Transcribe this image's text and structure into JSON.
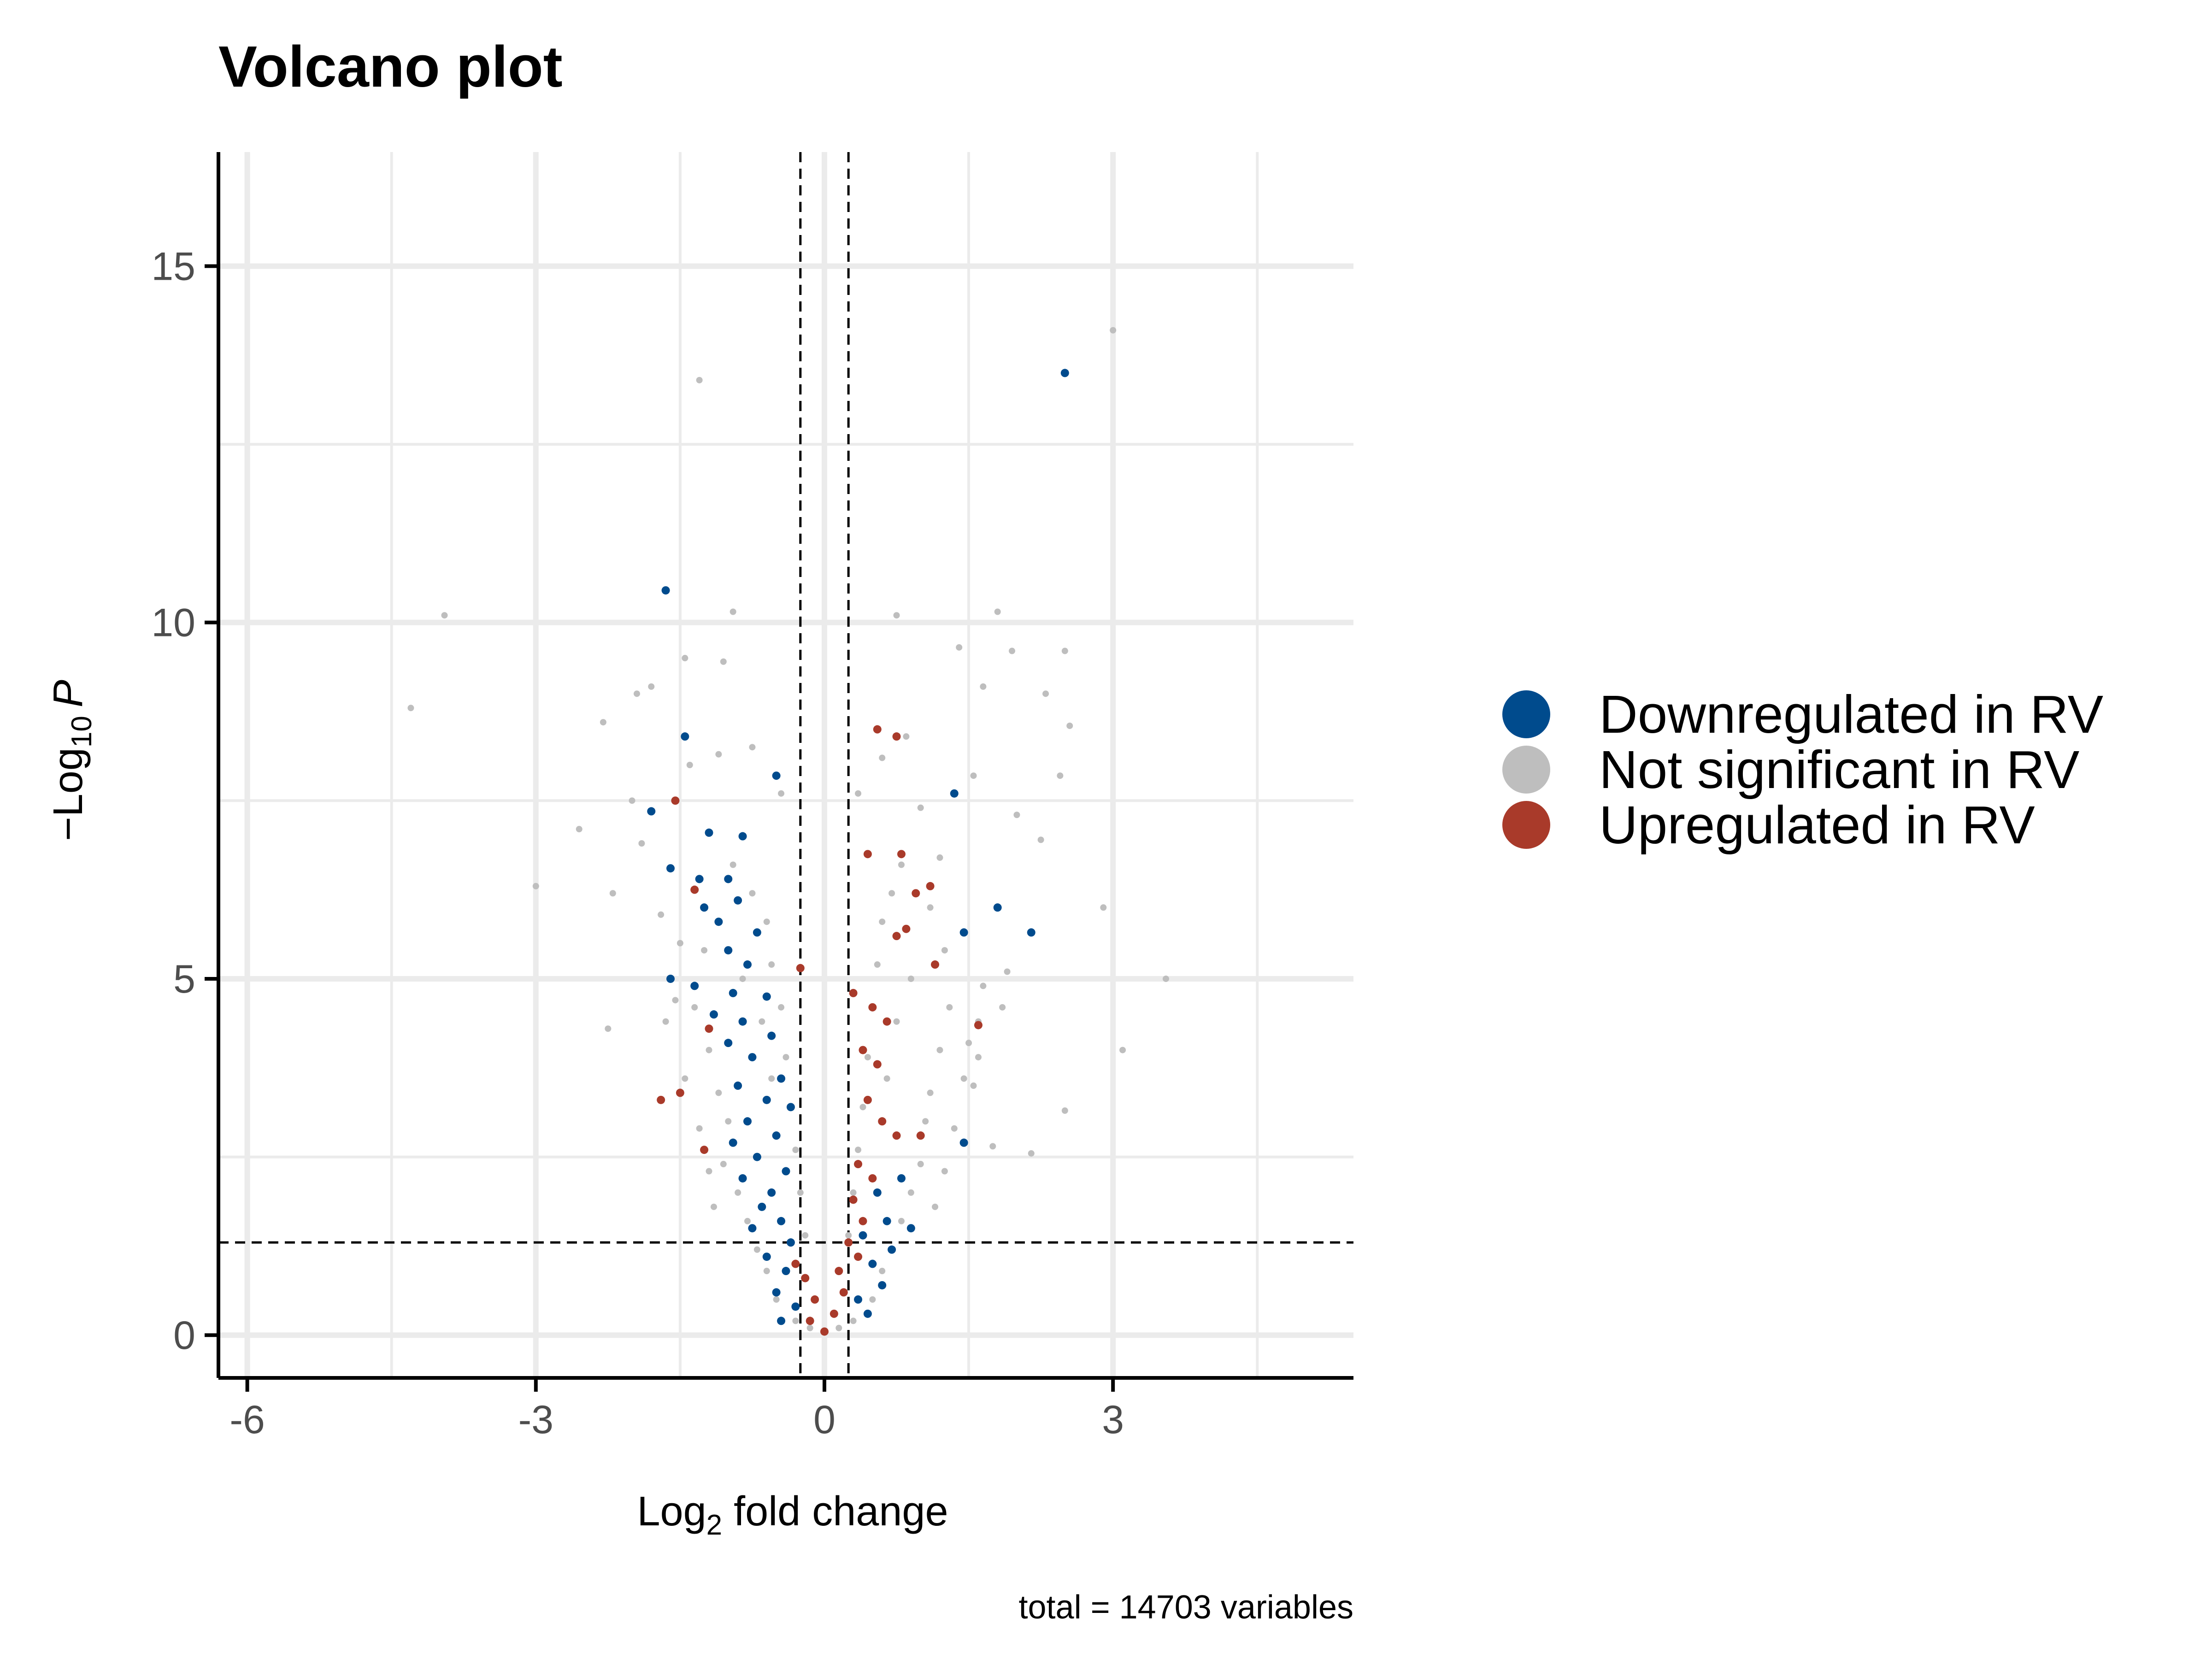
{
  "chart_data": {
    "type": "scatter",
    "title": "Volcano plot",
    "xlabel": {
      "main": "Log",
      "sub": "2",
      "rest": " fold change"
    },
    "ylabel": {
      "pre": "−Log",
      "sub": "10",
      "italic": "P"
    },
    "caption": "total = 14703 variables",
    "xlim": [
      -6.3,
      5.5
    ],
    "ylim": [
      -0.6,
      16.6
    ],
    "x_ticks": [
      -6,
      -3,
      0,
      3
    ],
    "x_tick_labels": [
      "-6",
      "-3",
      "0",
      "3"
    ],
    "y_ticks": [
      0,
      5,
      10,
      15
    ],
    "y_tick_labels": [
      "0",
      "5",
      "10",
      "15"
    ],
    "x_minor_gridlines": [
      -4.5,
      -1.5,
      1.5,
      4.5
    ],
    "y_minor_gridlines": [
      2.5,
      7.5,
      12.5
    ],
    "grid": true,
    "cutoffs": {
      "fold_change": [
        -0.25,
        0.25
      ],
      "neg_log10_p": 1.3
    },
    "legend_placement": "right",
    "series": [
      {
        "name": "Downregulated in RV",
        "color": "#004B8D",
        "points": [
          [
            2.5,
            13.5
          ],
          [
            -1.65,
            10.45
          ],
          [
            -1.45,
            8.4
          ],
          [
            -0.5,
            7.85
          ],
          [
            -1.8,
            7.35
          ],
          [
            -1.2,
            7.05
          ],
          [
            -0.85,
            7.0
          ],
          [
            -1.6,
            6.55
          ],
          [
            -1.3,
            6.4
          ],
          [
            -1.0,
            6.4
          ],
          [
            1.35,
            7.6
          ],
          [
            1.8,
            6.0
          ],
          [
            2.15,
            5.65
          ],
          [
            1.45,
            5.65
          ],
          [
            -1.25,
            6.0
          ],
          [
            -0.9,
            6.1
          ],
          [
            -1.1,
            5.8
          ],
          [
            -0.7,
            5.65
          ],
          [
            -1.0,
            5.4
          ],
          [
            -0.8,
            5.2
          ],
          [
            -1.6,
            5.0
          ],
          [
            -1.35,
            4.9
          ],
          [
            -0.95,
            4.8
          ],
          [
            -0.6,
            4.75
          ],
          [
            -1.15,
            4.5
          ],
          [
            -0.85,
            4.4
          ],
          [
            -0.55,
            4.2
          ],
          [
            -1.0,
            4.1
          ],
          [
            -0.75,
            3.9
          ],
          [
            -0.45,
            3.6
          ],
          [
            -0.9,
            3.5
          ],
          [
            -0.6,
            3.3
          ],
          [
            -0.35,
            3.2
          ],
          [
            -0.8,
            3.0
          ],
          [
            -0.5,
            2.8
          ],
          [
            -0.95,
            2.7
          ],
          [
            -0.7,
            2.5
          ],
          [
            -0.4,
            2.3
          ],
          [
            -0.85,
            2.2
          ],
          [
            -0.55,
            2.0
          ],
          [
            -0.65,
            1.8
          ],
          [
            -0.45,
            1.6
          ],
          [
            -0.75,
            1.5
          ],
          [
            -0.35,
            1.3
          ],
          [
            -0.6,
            1.1
          ],
          [
            -0.4,
            0.9
          ],
          [
            -0.5,
            0.6
          ],
          [
            -0.3,
            0.4
          ],
          [
            -0.45,
            0.2
          ],
          [
            1.45,
            2.7
          ],
          [
            0.8,
            2.2
          ],
          [
            0.55,
            2.0
          ],
          [
            0.65,
            1.6
          ],
          [
            0.9,
            1.5
          ],
          [
            0.4,
            1.4
          ],
          [
            0.7,
            1.2
          ],
          [
            0.5,
            1.0
          ],
          [
            0.6,
            0.7
          ],
          [
            0.35,
            0.5
          ],
          [
            0.45,
            0.3
          ]
        ]
      },
      {
        "name": "Not significant in RV",
        "color": "#BEBEBE",
        "points": [
          [
            3.0,
            14.1
          ],
          [
            -1.3,
            13.4
          ],
          [
            -3.95,
            10.1
          ],
          [
            -0.95,
            10.15
          ],
          [
            0.75,
            10.1
          ],
          [
            1.8,
            10.15
          ],
          [
            1.4,
            9.65
          ],
          [
            1.95,
            9.6
          ],
          [
            2.5,
            9.6
          ],
          [
            -1.45,
            9.5
          ],
          [
            -1.05,
            9.45
          ],
          [
            -4.3,
            8.8
          ],
          [
            1.65,
            9.1
          ],
          [
            2.3,
            9.0
          ],
          [
            -1.8,
            9.1
          ],
          [
            -1.95,
            9.0
          ],
          [
            -2.3,
            8.6
          ],
          [
            2.55,
            8.55
          ],
          [
            -3.0,
            6.3
          ],
          [
            2.9,
            6.0
          ],
          [
            3.55,
            5.0
          ],
          [
            3.1,
            4.0
          ],
          [
            2.5,
            3.15
          ],
          [
            2.15,
            2.55
          ],
          [
            -2.25,
            4.3
          ],
          [
            -2.55,
            7.1
          ],
          [
            -2.0,
            7.5
          ],
          [
            -1.9,
            6.9
          ],
          [
            -2.2,
            6.2
          ],
          [
            -1.7,
            5.9
          ],
          [
            -1.55,
            4.7
          ],
          [
            1.9,
            5.1
          ],
          [
            1.65,
            4.9
          ],
          [
            1.85,
            4.6
          ],
          [
            1.5,
            4.1
          ],
          [
            1.6,
            3.9
          ],
          [
            1.55,
            3.5
          ],
          [
            1.75,
            2.65
          ],
          [
            2.0,
            7.3
          ],
          [
            2.25,
            6.95
          ],
          [
            2.45,
            7.85
          ],
          [
            1.55,
            7.85
          ],
          [
            -1.4,
            8.0
          ],
          [
            -1.1,
            8.15
          ],
          [
            -0.75,
            8.25
          ],
          [
            -0.45,
            7.6
          ],
          [
            0.35,
            7.6
          ],
          [
            0.6,
            8.1
          ],
          [
            0.85,
            8.4
          ],
          [
            1.0,
            7.4
          ],
          [
            1.2,
            6.7
          ],
          [
            1.1,
            6.0
          ],
          [
            -1.5,
            5.5
          ],
          [
            -1.25,
            5.4
          ],
          [
            -1.35,
            4.6
          ],
          [
            -1.2,
            4.0
          ],
          [
            -1.1,
            3.4
          ],
          [
            -1.0,
            3.0
          ],
          [
            -1.05,
            2.4
          ],
          [
            -0.9,
            2.0
          ],
          [
            -0.8,
            1.6
          ],
          [
            -0.7,
            1.2
          ],
          [
            -0.6,
            0.9
          ],
          [
            -0.5,
            0.5
          ],
          [
            -0.3,
            0.2
          ],
          [
            -0.15,
            0.1
          ],
          [
            0.0,
            0.05
          ],
          [
            0.15,
            0.1
          ],
          [
            0.3,
            0.2
          ],
          [
            0.5,
            0.5
          ],
          [
            0.6,
            0.9
          ],
          [
            0.7,
            1.2
          ],
          [
            0.8,
            1.6
          ],
          [
            0.9,
            2.0
          ],
          [
            1.0,
            2.4
          ],
          [
            1.05,
            3.0
          ],
          [
            1.1,
            3.4
          ],
          [
            1.2,
            4.0
          ],
          [
            1.3,
            4.6
          ],
          [
            1.25,
            5.4
          ],
          [
            -0.95,
            6.6
          ],
          [
            -0.75,
            6.2
          ],
          [
            -0.6,
            5.8
          ],
          [
            -0.55,
            5.2
          ],
          [
            -0.45,
            4.6
          ],
          [
            -0.4,
            3.9
          ],
          [
            -0.35,
            3.2
          ],
          [
            -0.3,
            2.6
          ],
          [
            -0.25,
            2.0
          ],
          [
            -0.2,
            1.4
          ],
          [
            0.25,
            1.4
          ],
          [
            0.3,
            2.0
          ],
          [
            0.35,
            2.6
          ],
          [
            0.4,
            3.2
          ],
          [
            0.45,
            3.9
          ],
          [
            0.5,
            4.6
          ],
          [
            0.55,
            5.2
          ],
          [
            0.6,
            5.8
          ],
          [
            0.7,
            6.2
          ],
          [
            0.8,
            6.6
          ],
          [
            -1.65,
            4.4
          ],
          [
            -1.45,
            3.6
          ],
          [
            -1.3,
            2.9
          ],
          [
            -1.2,
            2.3
          ],
          [
            -1.15,
            1.8
          ],
          [
            1.15,
            1.8
          ],
          [
            1.25,
            2.3
          ],
          [
            1.35,
            2.9
          ],
          [
            1.45,
            3.6
          ],
          [
            1.6,
            4.4
          ],
          [
            -0.85,
            5.0
          ],
          [
            -0.65,
            4.4
          ],
          [
            -0.55,
            3.6
          ],
          [
            0.65,
            3.6
          ],
          [
            0.75,
            4.4
          ],
          [
            0.9,
            5.0
          ]
        ]
      },
      {
        "name": "Upregulated in RV",
        "color": "#A93A2A",
        "points": [
          [
            -1.55,
            7.5
          ],
          [
            0.55,
            8.5
          ],
          [
            0.75,
            8.4
          ],
          [
            -1.35,
            6.25
          ],
          [
            0.45,
            6.75
          ],
          [
            0.8,
            6.75
          ],
          [
            1.1,
            6.3
          ],
          [
            0.95,
            6.2
          ],
          [
            0.85,
            5.7
          ],
          [
            0.75,
            5.6
          ],
          [
            1.15,
            5.2
          ],
          [
            -0.25,
            5.15
          ],
          [
            0.3,
            4.8
          ],
          [
            0.5,
            4.6
          ],
          [
            0.65,
            4.4
          ],
          [
            1.6,
            4.35
          ],
          [
            -1.2,
            4.3
          ],
          [
            0.4,
            4.0
          ],
          [
            0.55,
            3.8
          ],
          [
            -1.5,
            3.4
          ],
          [
            -1.7,
            3.3
          ],
          [
            0.45,
            3.3
          ],
          [
            0.6,
            3.0
          ],
          [
            0.75,
            2.8
          ],
          [
            1.0,
            2.8
          ],
          [
            -1.25,
            2.6
          ],
          [
            0.35,
            2.4
          ],
          [
            0.5,
            2.2
          ],
          [
            0.3,
            1.9
          ],
          [
            0.4,
            1.6
          ],
          [
            0.25,
            1.3
          ],
          [
            0.35,
            1.1
          ],
          [
            -0.2,
            0.8
          ],
          [
            -0.1,
            0.5
          ],
          [
            0.0,
            0.05
          ],
          [
            0.1,
            0.3
          ],
          [
            0.2,
            0.6
          ],
          [
            0.15,
            0.9
          ],
          [
            -0.3,
            1.0
          ],
          [
            -0.15,
            0.2
          ]
        ]
      }
    ]
  }
}
